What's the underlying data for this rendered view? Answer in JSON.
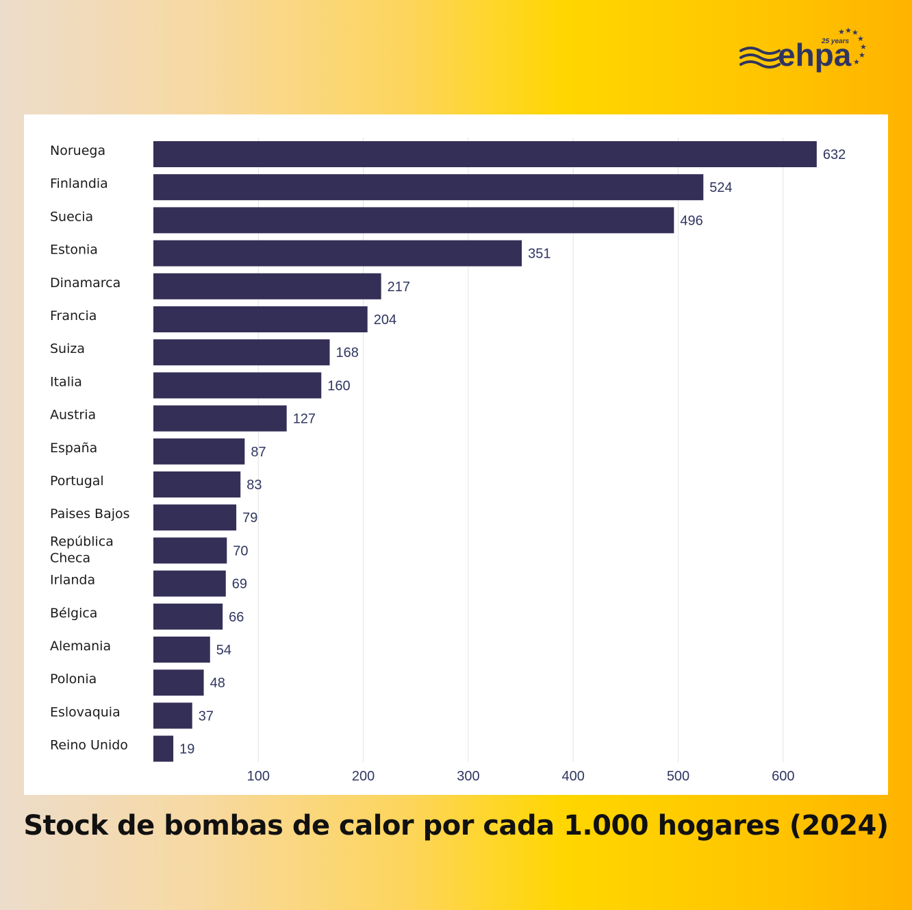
{
  "logo": {
    "text": "ehpa",
    "tagline": "25 years",
    "icon": "ehpa-logo-icon"
  },
  "chart_data": {
    "type": "bar",
    "orientation": "horizontal",
    "title": "Stock de bombas de calor por cada 1.000 hogares (2024)",
    "categories": [
      "Noruega",
      "Finlandia",
      "Suecia",
      "Estonia",
      "Dinamarca",
      "Francia",
      "Suiza",
      "Italia",
      "Austria",
      "España",
      "Portugal",
      "Paises Bajos",
      "República Checa",
      "Irlanda",
      "Bélgica",
      "Alemania",
      "Polonia",
      "Eslovaquia",
      "Reino Unido"
    ],
    "values": [
      632,
      524,
      496,
      351,
      217,
      204,
      168,
      160,
      127,
      87,
      83,
      79,
      70,
      69,
      66,
      54,
      48,
      37,
      19
    ],
    "xticks": [
      100,
      200,
      300,
      400,
      500,
      600
    ],
    "xlim": [
      0,
      680
    ],
    "grid": true,
    "bar_color": "#342f57"
  }
}
